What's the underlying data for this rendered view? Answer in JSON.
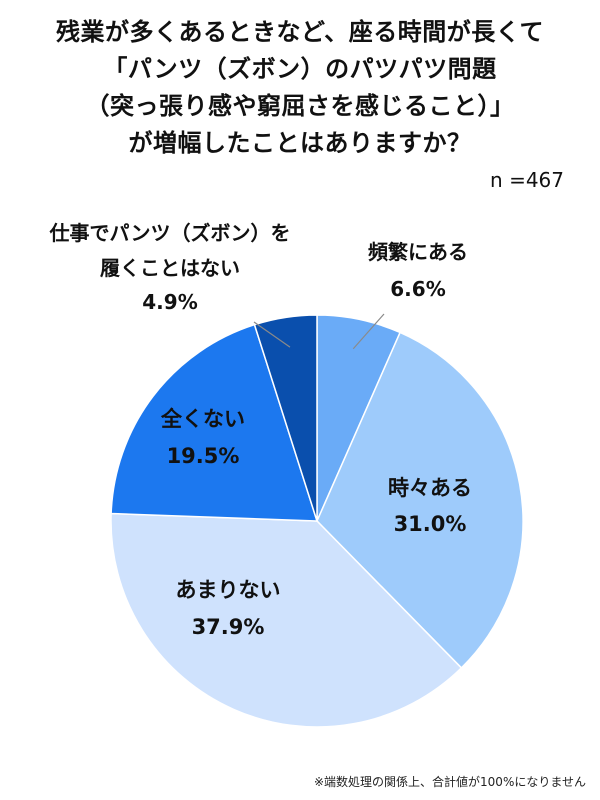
{
  "chart_data": {
    "type": "pie",
    "title_lines": [
      "残業が多くあるときなど、座る時間が長くて",
      "「パンツ（ズボン）のパツパツ問題",
      "（突っ張り感や窮屈さを感じること）」",
      "が増幅したことはありますか？"
    ],
    "sample_size": "n =467",
    "slices": [
      {
        "label": "頻繁にある",
        "value": 6.6,
        "display": "6.6%",
        "color": "#6aabf7"
      },
      {
        "label": "時々ある",
        "value": 31.0,
        "display": "31.0%",
        "color": "#9ecbfb"
      },
      {
        "label": "あまりない",
        "value": 37.9,
        "display": "37.9%",
        "color": "#cfe2fd"
      },
      {
        "label": "全くない",
        "value": 19.5,
        "display": "19.5%",
        "color": "#1c78ef"
      },
      {
        "label": "仕事でパンツ（ズボン）を履くことはない",
        "label_lines": [
          "仕事でパンツ（ズボン）を",
          "履くことはない"
        ],
        "value": 4.9,
        "display": "4.9%",
        "color": "#0a4fad"
      }
    ],
    "footnote": "※端数処理の関係上、合計値が100%になりません"
  }
}
